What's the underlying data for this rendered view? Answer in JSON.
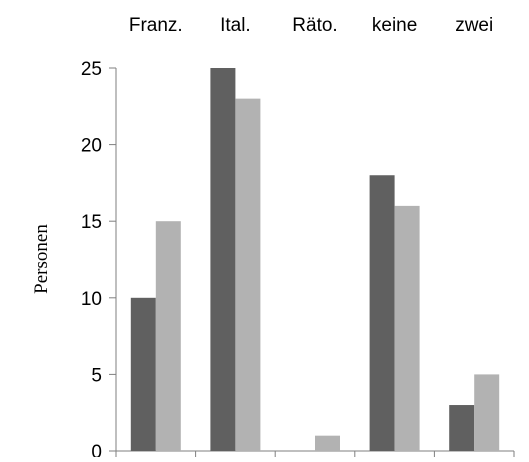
{
  "chart_data": {
    "type": "bar",
    "categories": [
      "Franz.",
      "Ital.",
      "Räto.",
      "keine",
      "zwei"
    ],
    "series": [
      {
        "values": [
          10,
          25,
          0,
          18,
          3
        ],
        "color": "#606060"
      },
      {
        "values": [
          15,
          23,
          1,
          16,
          5
        ],
        "color": "#b2b2b2"
      }
    ],
    "title": "",
    "xlabel": "",
    "ylabel": "Personen",
    "ylim": [
      0,
      25
    ],
    "yticks": [
      "0",
      "5",
      "10",
      "15",
      "20",
      "25"
    ],
    "category_labels_position": "top",
    "grid": false,
    "legend": "none"
  }
}
